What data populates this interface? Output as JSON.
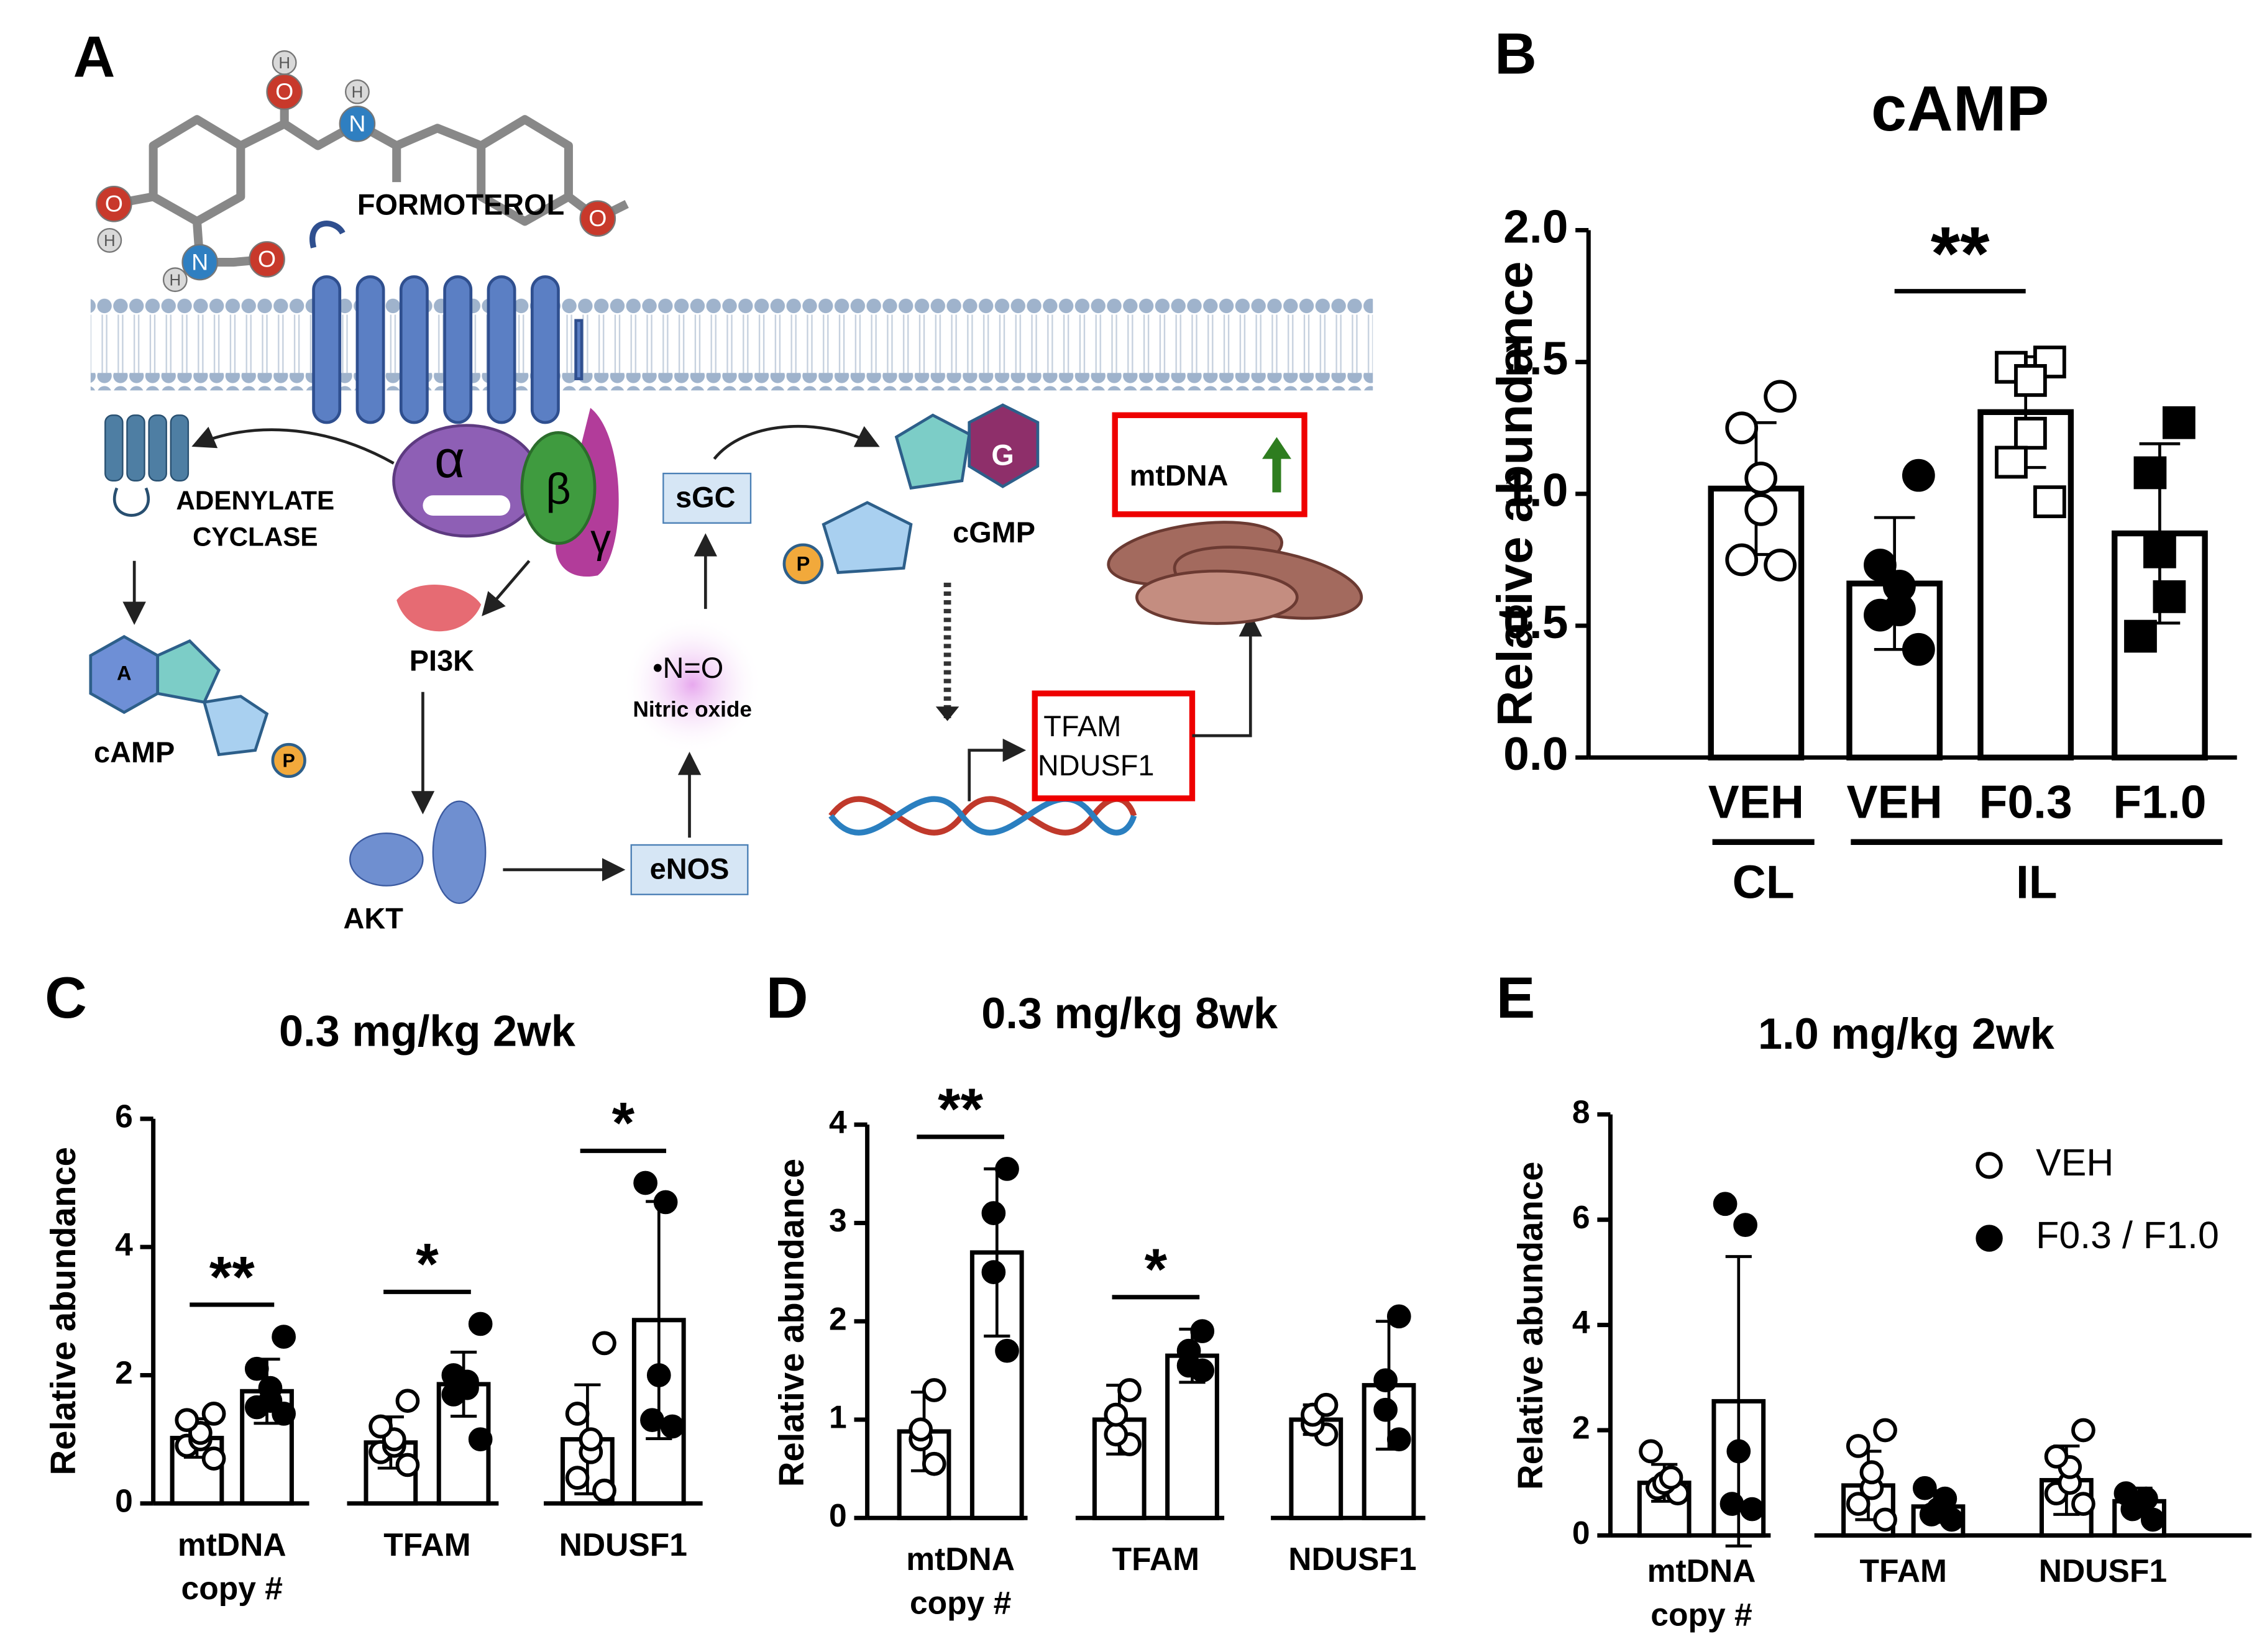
{
  "panel_a": {
    "label": "A",
    "formoterol": "FORMOTEROL",
    "atoms": [
      "H",
      "O",
      "H",
      "N",
      "O",
      "H",
      "N",
      "O",
      "H",
      "O"
    ],
    "subunits": [
      "α",
      "β",
      "γ"
    ],
    "adenylate_cyclase": [
      "ADENYLATE",
      "CYCLASE"
    ],
    "camp": "cAMP",
    "camp_base": "A",
    "phosphate": "P",
    "pi3k": "PI3K",
    "akt": "AKT",
    "enos": "eNOS",
    "no": "•N=O",
    "nitric_oxide": "Nitric oxide",
    "sgc": "sGC",
    "cgmp": "cGMP",
    "cgmp_base": "G",
    "mtdna": "mtDNA",
    "genes": [
      "TFAM",
      "NDUSF1"
    ]
  },
  "chart_data": [
    {
      "panel": "B",
      "type": "bar",
      "title": "cAMP",
      "y_label": "Relative abundance",
      "categories": [
        "VEH",
        "VEH",
        "F0.3",
        "F1.0"
      ],
      "groups": [
        "CL",
        "IL"
      ],
      "values": [
        1.02,
        0.66,
        1.31,
        0.85
      ],
      "errors": [
        0.25,
        0.25,
        0.21,
        0.34
      ],
      "points": [
        [
          1.37,
          1.25,
          1.06,
          0.94,
          0.75,
          0.73
        ],
        [
          1.07,
          0.73,
          0.65,
          0.56,
          0.54,
          0.41
        ],
        [
          1.5,
          1.48,
          1.43,
          1.23,
          1.12,
          0.97
        ],
        [
          1.27,
          1.08,
          0.78,
          0.61,
          0.46
        ]
      ],
      "color": "#ffffff",
      "ylim": [
        0,
        2
      ],
      "yticks": [
        {
          "value": 0,
          "label": "0.0"
        },
        {
          "value": 0.5,
          "label": "0.5"
        },
        {
          "value": 1,
          "label": "1.0"
        },
        {
          "value": 1.5,
          "label": "1.5"
        },
        {
          "value": 2,
          "label": "2.0"
        }
      ],
      "annotations": [
        "**"
      ]
    },
    {
      "panel": "C",
      "type": "grouped_bar",
      "title": "0.3 mg/kg 2wk",
      "y_label": "Relative abundance",
      "categories": [
        [
          "mtDNA",
          "copy #"
        ],
        [
          "TFAM"
        ],
        [
          "NDUSF1"
        ]
      ],
      "series": [
        {
          "color": "#ffffff",
          "values": [
            1.02,
            0.95,
            1.0
          ],
          "errors": [
            0.3,
            0.4,
            0.85
          ],
          "points": [
            [
              0.7,
              0.9,
              1.0,
              1.1,
              1.3,
              1.4
            ],
            [
              0.6,
              0.8,
              0.9,
              1.0,
              1.2,
              1.6
            ],
            [
              0.2,
              0.4,
              0.8,
              1.0,
              1.4,
              2.5
            ]
          ]
        },
        {
          "color": "#000000",
          "values": [
            1.75,
            1.86,
            2.86
          ],
          "errors": [
            0.5,
            0.5,
            1.85
          ],
          "points": [
            [
              1.4,
              1.5,
              1.6,
              1.8,
              2.1,
              2.6
            ],
            [
              1.0,
              1.7,
              1.8,
              1.9,
              2.0,
              2.8
            ],
            [
              1.2,
              1.3,
              2.0,
              4.7,
              5.0
            ]
          ]
        }
      ],
      "ylim": [
        0,
        6
      ],
      "yticks": [
        0,
        2,
        4,
        6
      ],
      "annotations": [
        "**",
        "*",
        "*"
      ]
    },
    {
      "panel": "D",
      "type": "grouped_bar",
      "title": "0.3 mg/kg 8wk",
      "y_label": "Relative abundance",
      "categories": [
        [
          "mtDNA",
          "copy #"
        ],
        [
          "TFAM"
        ],
        [
          "NDUSF1"
        ]
      ],
      "series": [
        {
          "color": "#ffffff",
          "values": [
            0.88,
            1.0,
            1.0
          ],
          "errors": [
            0.4,
            0.35,
            0.15
          ],
          "points": [
            [
              0.55,
              0.8,
              0.9,
              1.3
            ],
            [
              0.75,
              0.85,
              1.05,
              1.3
            ],
            [
              0.85,
              0.95,
              1.05,
              1.15
            ]
          ]
        },
        {
          "color": "#000000",
          "values": [
            2.7,
            1.65,
            1.35
          ],
          "errors": [
            0.85,
            0.27,
            0.65
          ],
          "points": [
            [
              1.7,
              2.5,
              3.1,
              3.55
            ],
            [
              1.5,
              1.55,
              1.7,
              1.9
            ],
            [
              0.8,
              1.1,
              1.4,
              2.05
            ]
          ]
        }
      ],
      "ylim": [
        0,
        4
      ],
      "yticks": [
        0,
        1,
        2,
        3,
        4
      ],
      "annotations": [
        "**",
        "*"
      ]
    },
    {
      "panel": "E",
      "type": "grouped_bar",
      "title": "1.0 mg/kg 2wk",
      "y_label": "Relative abundance",
      "categories": [
        [
          "mtDNA",
          "copy #"
        ],
        [
          "TFAM"
        ],
        [
          "NDUSF1"
        ]
      ],
      "series": [
        {
          "name": "VEH",
          "color": "#ffffff",
          "values": [
            1.0,
            0.95,
            1.05
          ],
          "errors": [
            0.35,
            0.65,
            0.65
          ],
          "points": [
            [
              0.8,
              0.9,
              1.0,
              1.1,
              1.6
            ],
            [
              0.3,
              0.6,
              0.9,
              1.2,
              1.7,
              2.0
            ],
            [
              0.6,
              0.8,
              1.0,
              1.3,
              1.5,
              2.0
            ]
          ]
        },
        {
          "name": "F0.3 / F1.0",
          "color": "#000000",
          "values": [
            2.55,
            0.55,
            0.65
          ],
          "errors": [
            2.75,
            0.3,
            0.25
          ],
          "points": [
            [
              0.5,
              0.6,
              1.6,
              5.9,
              6.3
            ],
            [
              0.3,
              0.4,
              0.5,
              0.7,
              0.9
            ],
            [
              0.3,
              0.5,
              0.6,
              0.7,
              0.8
            ]
          ]
        }
      ],
      "ylim": [
        0,
        8
      ],
      "yticks": [
        0,
        2,
        4,
        6,
        8
      ],
      "legend": "upper right"
    }
  ]
}
